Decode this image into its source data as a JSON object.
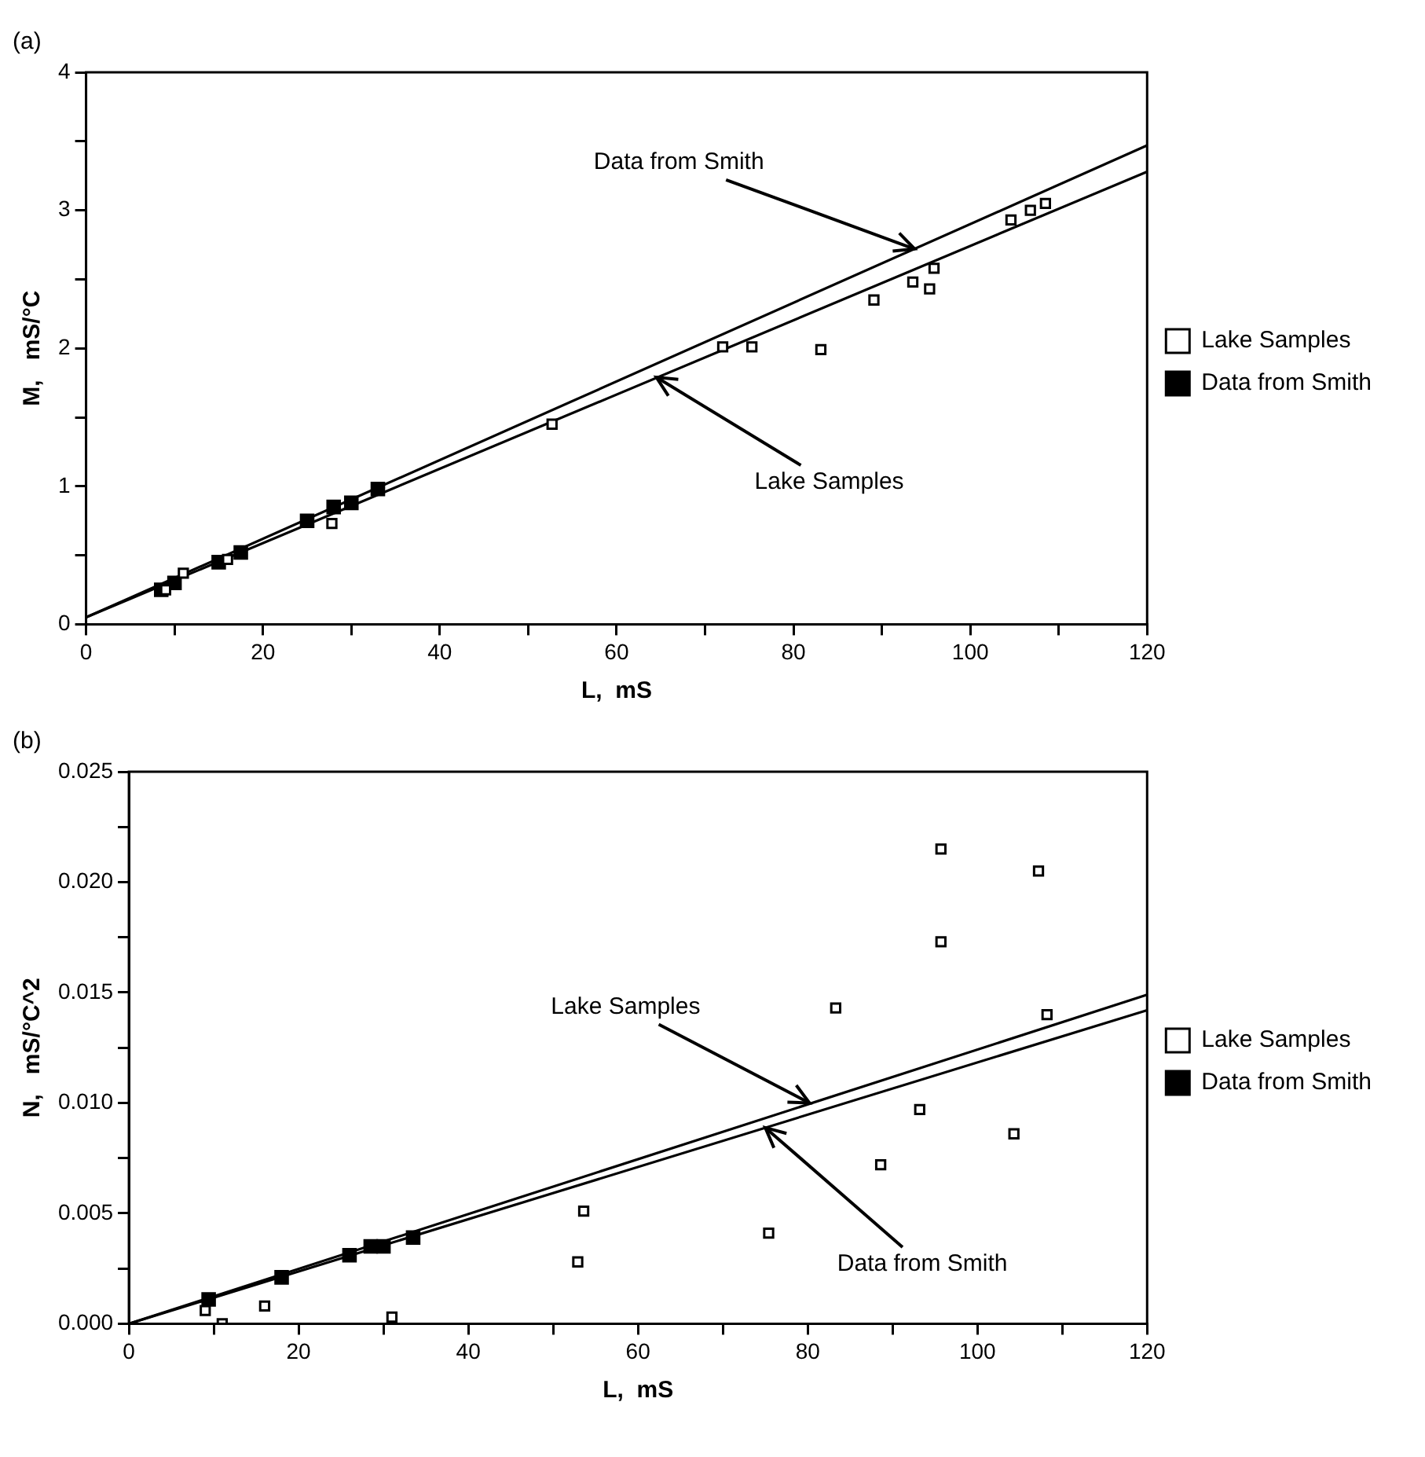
{
  "chart_data": [
    {
      "type": "scatter",
      "title": "(a)",
      "xlabel": "L,  mS",
      "ylabel": "M,   mS/°C",
      "xlim": [
        0,
        120
      ],
      "ylim": [
        0,
        4
      ],
      "xticks": [
        0,
        {
          "value": 10,
          "label": null
        },
        20,
        {
          "value": 30,
          "label": null
        },
        40,
        {
          "value": 50,
          "label": null
        },
        60,
        {
          "value": 70,
          "label": null
        },
        80,
        {
          "value": 90,
          "label": null
        },
        100,
        {
          "value": 110,
          "label": null
        },
        120
      ],
      "yticks": [
        0,
        {
          "value": 0.5,
          "label": null
        },
        1,
        {
          "value": 1.5,
          "label": null
        },
        2,
        {
          "value": 2.5,
          "label": null
        },
        3,
        {
          "value": 3.5,
          "label": null
        },
        4
      ],
      "grid": false,
      "legend": "right",
      "series": [
        {
          "name": "Lake Samples",
          "marker": "square",
          "color": "#000000",
          "x": [
            9,
            11,
            16,
            27.8,
            52.7,
            72,
            75.3,
            83.1,
            89.1,
            93.5,
            95.4,
            95.9,
            104.6,
            106.8,
            108.5
          ],
          "values": [
            0.25,
            0.37,
            0.47,
            0.73,
            1.45,
            2.01,
            2.01,
            1.99,
            2.35,
            2.48,
            2.43,
            2.58,
            2.93,
            3.0,
            3.05
          ]
        },
        {
          "name": "Data from Smith",
          "marker": "square",
          "color": "#000000",
          "x": [
            8.5,
            10,
            15,
            17.5,
            25,
            28,
            30,
            33
          ],
          "values": [
            0.25,
            0.3,
            0.45,
            0.52,
            0.75,
            0.85,
            0.88,
            0.98
          ]
        },
        {
          "type": "line",
          "marker": "none",
          "color": "#000000",
          "x": [
            0,
            120
          ],
          "values": [
            0.05,
            3.47
          ]
        },
        {
          "type": "line",
          "marker": "none",
          "color": "#000000",
          "x": [
            0,
            120
          ],
          "values": [
            0.05,
            3.28
          ]
        }
      ],
      "annotations": [
        {
          "text": "Data from Smith",
          "x": 93.7,
          "y": 2.72
        },
        {
          "text": "Lake Samples",
          "x": 64.5,
          "y": 1.79
        }
      ]
    },
    {
      "type": "scatter",
      "title": "(b)",
      "xlabel": "L,  mS",
      "ylabel": "N,   mS/°C^2",
      "xlim": [
        0,
        120
      ],
      "ylim": [
        0,
        0.025
      ],
      "xticks": [
        0,
        {
          "value": 10,
          "label": null
        },
        20,
        {
          "value": 30,
          "label": null
        },
        40,
        {
          "value": 50,
          "label": null
        },
        60,
        {
          "value": 70,
          "label": null
        },
        80,
        {
          "value": 90,
          "label": null
        },
        100,
        {
          "value": 110,
          "label": null
        },
        120
      ],
      "yticks": [
        {
          "value": 0,
          "label": "0.000"
        },
        {
          "value": 0.0025,
          "label": null
        },
        {
          "value": 0.005,
          "label": "0.005"
        },
        {
          "value": 0.0075,
          "label": null
        },
        {
          "value": 0.01,
          "label": "0.010"
        },
        {
          "value": 0.0125,
          "label": null
        },
        {
          "value": 0.015,
          "label": "0.015"
        },
        {
          "value": 0.0175,
          "label": null
        },
        {
          "value": 0.02,
          "label": "0.020"
        },
        {
          "value": 0.0225,
          "label": null
        },
        {
          "value": 0.025,
          "label": "0.025"
        }
      ],
      "grid": false,
      "legend": "right",
      "series": [
        {
          "name": "Lake Samples",
          "marker": "square",
          "color": "#000000",
          "x": [
            9,
            11,
            16,
            31,
            52.9,
            53.6,
            75.4,
            83.3,
            88.6,
            93.2,
            95.7,
            95.7,
            104.3,
            107.2,
            108.2
          ],
          "values": [
            0.0006,
            0.0,
            0.0008,
            0.0003,
            0.0028,
            0.0051,
            0.0041,
            0.0143,
            0.0072,
            0.0097,
            0.0173,
            0.0215,
            0.0086,
            0.0205,
            0.014
          ]
        },
        {
          "name": "Data from Smith",
          "marker": "square",
          "color": "#000000",
          "x": [
            9.4,
            18,
            26,
            28.5,
            30,
            33.5
          ],
          "values": [
            0.0011,
            0.0021,
            0.0031,
            0.0035,
            0.0035,
            0.0039
          ]
        },
        {
          "type": "line",
          "marker": "none",
          "color": "#000000",
          "x": [
            0,
            120
          ],
          "values": [
            0.0,
            0.0149
          ]
        },
        {
          "type": "line",
          "marker": "none",
          "color": "#000000",
          "x": [
            0,
            120
          ],
          "values": [
            0.0,
            0.0142
          ]
        }
      ],
      "annotations": [
        {
          "text": "Lake Samples",
          "x": 80.2,
          "y": 0.01
        },
        {
          "text": "Data from Smith",
          "x": 75,
          "y": 0.00888
        }
      ]
    }
  ]
}
